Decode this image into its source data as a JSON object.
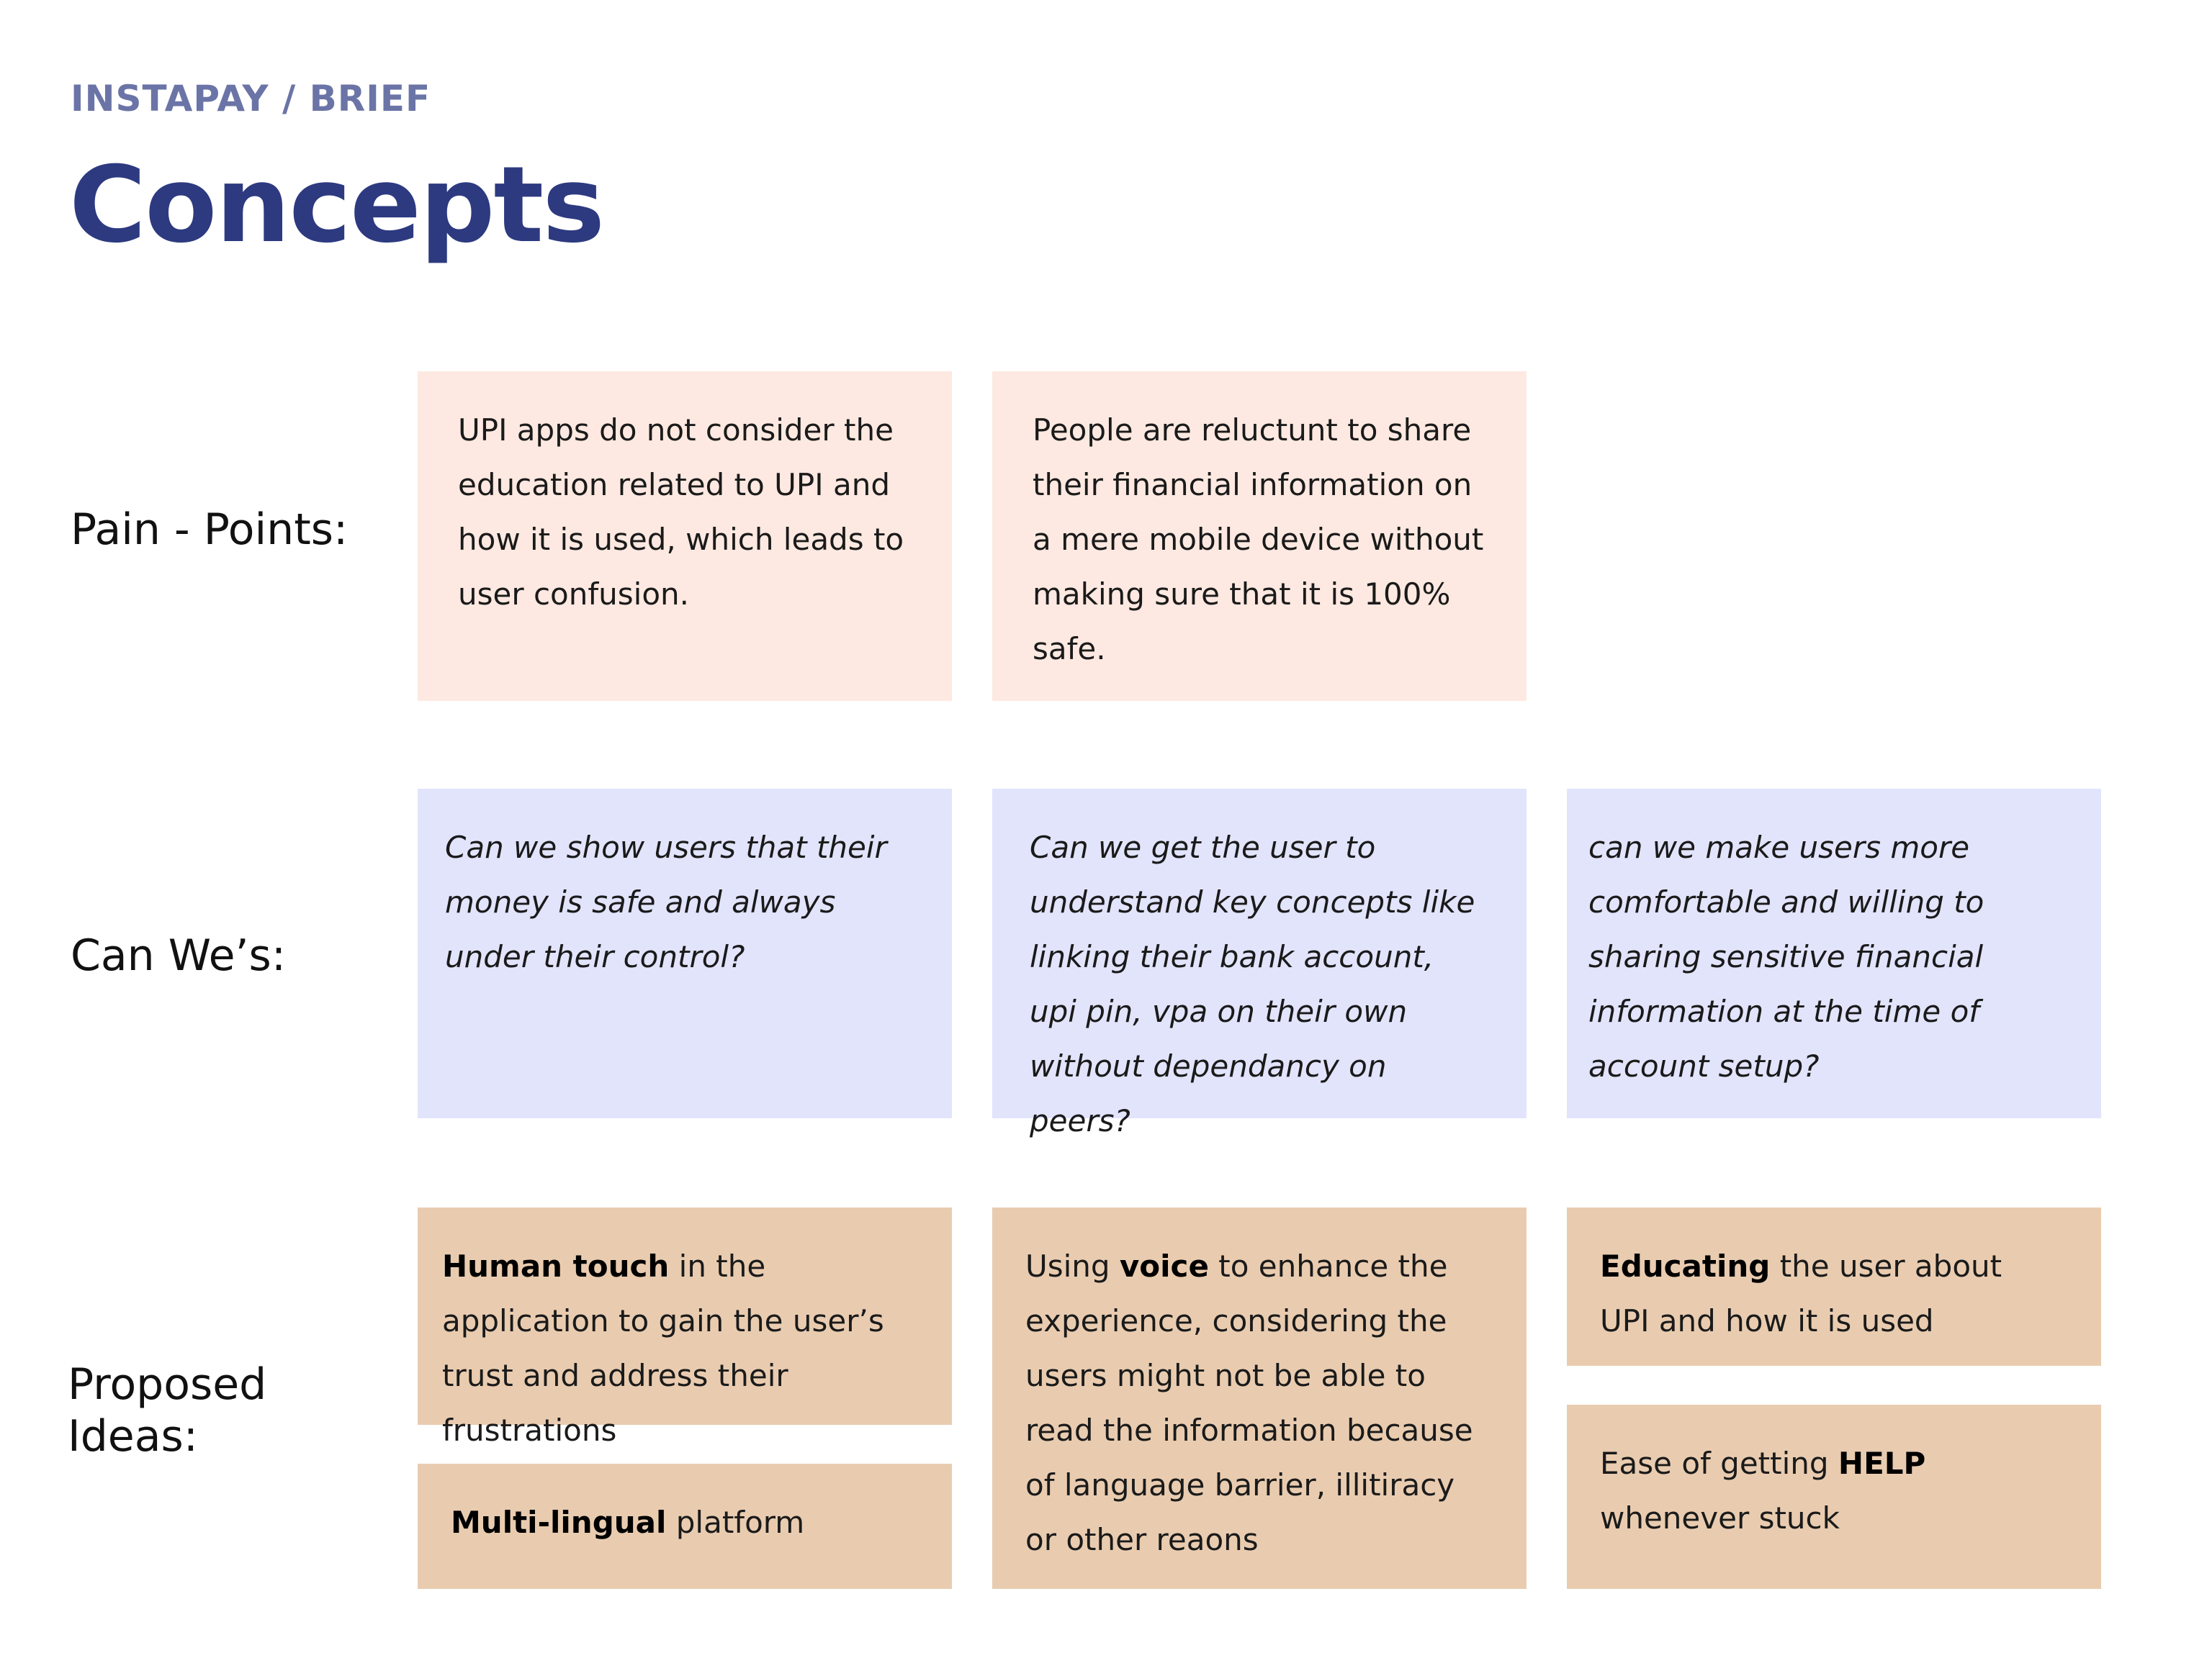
{
  "header": {
    "eyebrow": "INSTAPAY / BRIEF",
    "title": "Concepts"
  },
  "rows": {
    "pain_points": {
      "label": "Pain - Points:",
      "cards": [
        "UPI apps do not consider the education related to UPI and how it is used, which leads to user confusion.",
        "People are reluctunt to share their financial information on a mere mobile device without making sure that it is 100% safe."
      ]
    },
    "can_wes": {
      "label": "Can We’s:",
      "cards": [
        "Can we show users that their money is safe and always under their control?",
        "Can we get the user to understand key concepts like linking their bank account, upi pin, vpa on their own without dependancy on peers?",
        "can we make users more comfortable and willing to sharing sensitive financial information at the time of account setup?"
      ]
    },
    "proposed_ideas": {
      "label_line1": "Proposed",
      "label_line2": "Ideas:",
      "cards": {
        "human_touch": {
          "bold": "Human touch",
          "rest": " in the application to gain the user’s trust and address their frustrations"
        },
        "multilingual": {
          "bold": "Multi-lingual",
          "rest": " platform"
        },
        "voice": {
          "pre": "Using ",
          "bold": "voice",
          "rest": " to enhance the experience, considering the users might not be able to read the information because of language barrier, illitiracy or other reaons"
        },
        "educating": {
          "bold": "Educating",
          "rest": " the user about UPI and how it is used"
        },
        "help": {
          "pre": "Ease of getting ",
          "bold": "HELP",
          "rest": " whenever stuck"
        }
      }
    }
  },
  "colors": {
    "title": "#2d3a80",
    "eyebrow": "#6b74a6",
    "pain_card": "#fde9e1",
    "canwe_card": "#e2e4fc",
    "idea_card": "#e9ccb0"
  }
}
